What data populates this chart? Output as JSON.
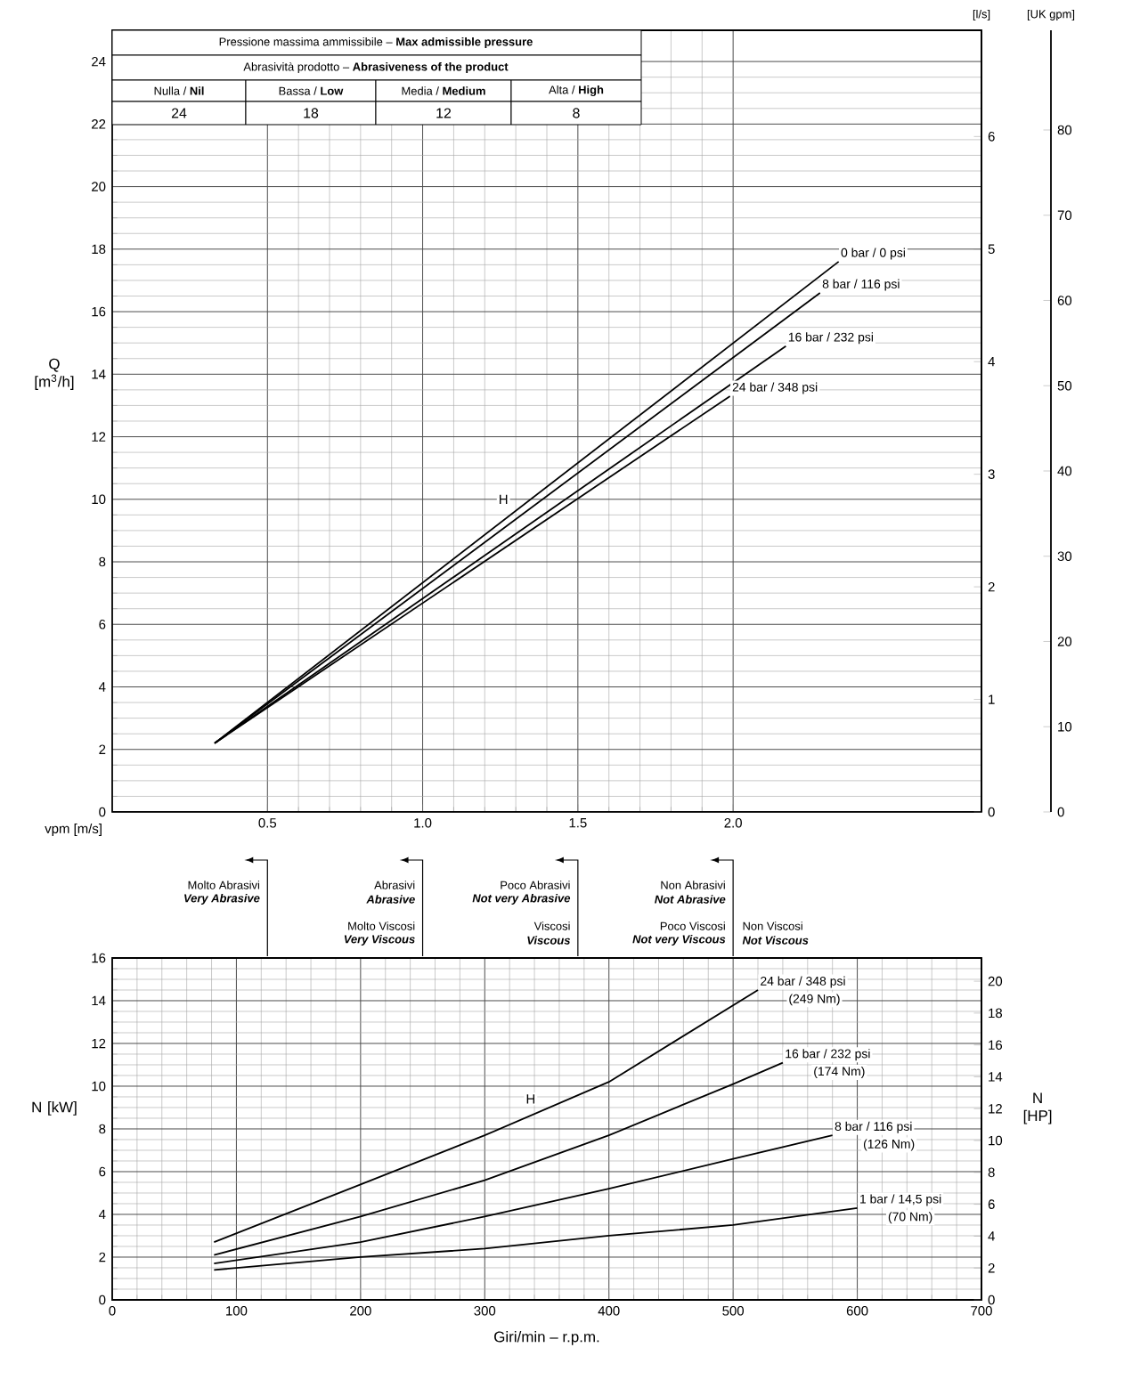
{
  "chart_data": [
    {
      "type": "line",
      "xlabel": "vpm [m/s]",
      "ylabel": "Q [m$^{3}$/h]",
      "y2label": "[l/s]",
      "y3label": "[UK gpm]",
      "xlim": [
        0,
        2.8
      ],
      "xticks": [
        0.5,
        {
          "value": 1,
          "label": "1.0"
        },
        1.5,
        {
          "value": 2,
          "label": "2.0"
        }
      ],
      "ylim": [
        0,
        25
      ],
      "yticks": [
        0,
        2,
        4,
        6,
        8,
        10,
        12,
        14,
        16,
        18,
        20,
        22,
        24
      ],
      "y2lim": [
        0,
        6.944
      ],
      "y2ticks": [
        0,
        1,
        2,
        3,
        4,
        5,
        6
      ],
      "y3lim": [
        0,
        91.7
      ],
      "y3ticks": [
        0,
        10,
        20,
        30,
        40,
        50,
        60,
        70,
        80
      ],
      "grid": true,
      "series": [
        {
          "name": "0 bar / 0 psi",
          "color": "#000000",
          "x": [
            0.33,
            2.34
          ],
          "values": [
            2.2,
            17.6
          ]
        },
        {
          "name": "8 bar / 116 psi",
          "color": "#000000",
          "x": [
            0.33,
            2.28
          ],
          "values": [
            2.2,
            16.6
          ]
        },
        {
          "name": "16 bar / 232 psi",
          "color": "#000000",
          "x": [
            0.33,
            2.17
          ],
          "values": [
            2.2,
            14.9
          ]
        },
        {
          "name": "24 bar / 348 psi",
          "color": "#000000",
          "x": [
            0.33,
            1.99
          ],
          "values": [
            2.2,
            13.3
          ]
        }
      ],
      "annotations": [
        "Pressione massima ammissibile – **Max admissible pressure**",
        "Abrasività prodotto – **Abrasiveness of the product**",
        "Nulla / **Nil**",
        "Bassa / **Low**",
        "Media / **Medium**",
        "Alta / **High**",
        "24",
        "18",
        "12",
        "8",
        {
          "text": "H",
          "x": 1.26,
          "y": 10
        },
        "Molto Abrasivi",
        "Very Abrasive",
        "Abrasivi",
        "Abrasive",
        "Poco Abrasivi",
        "Not very Abrasive",
        "Non Abrasivi",
        "Not Abrasive",
        "Molto Viscosi",
        "Very Viscous",
        "Viscosi",
        "Viscous",
        "Poco Viscosi",
        "Not very Viscous",
        "Non Viscosi",
        "Not Viscous"
      ]
    },
    {
      "type": "line",
      "xlabel": "Giri/min – r.p.m.",
      "ylabel": "N [kW]",
      "y2label": "N [HP]",
      "xlim": [
        0,
        700
      ],
      "xticks": [
        0,
        100,
        200,
        300,
        400,
        500,
        600,
        700
      ],
      "ylim": [
        0,
        16
      ],
      "yticks": [
        0,
        2,
        4,
        6,
        8,
        10,
        12,
        14,
        16
      ],
      "y2lim": [
        0,
        21.46
      ],
      "y2ticks": [
        0,
        2,
        4,
        6,
        8,
        10,
        12,
        14,
        16,
        18,
        20
      ],
      "grid": true,
      "series": [
        {
          "name": "24 bar / 348 psi",
          "color": "#000000",
          "x": [
            82,
            200,
            300,
            400,
            520
          ],
          "values": [
            2.7,
            5.4,
            7.7,
            10.2,
            14.5
          ]
        },
        {
          "name": "16 bar / 232 psi",
          "color": "#000000",
          "x": [
            82,
            200,
            300,
            400,
            500,
            540
          ],
          "values": [
            2.1,
            3.9,
            5.6,
            7.7,
            10.1,
            11.1
          ]
        },
        {
          "name": "8 bar / 116 psi",
          "color": "#000000",
          "x": [
            82,
            200,
            300,
            400,
            500,
            580
          ],
          "values": [
            1.7,
            2.7,
            3.9,
            5.2,
            6.6,
            7.7
          ]
        },
        {
          "name": "1 bar / 14,5 psi",
          "color": "#000000",
          "x": [
            82,
            200,
            300,
            400,
            500,
            600
          ],
          "values": [
            1.4,
            2.0,
            2.4,
            3.0,
            3.5,
            4.3
          ]
        }
      ],
      "annotations": [
        {
          "text": "H",
          "x": 337,
          "y": 9.4
        },
        "(249 Nm)",
        "(174 Nm)",
        "(126 Nm)",
        "(70 Nm)"
      ]
    }
  ]
}
